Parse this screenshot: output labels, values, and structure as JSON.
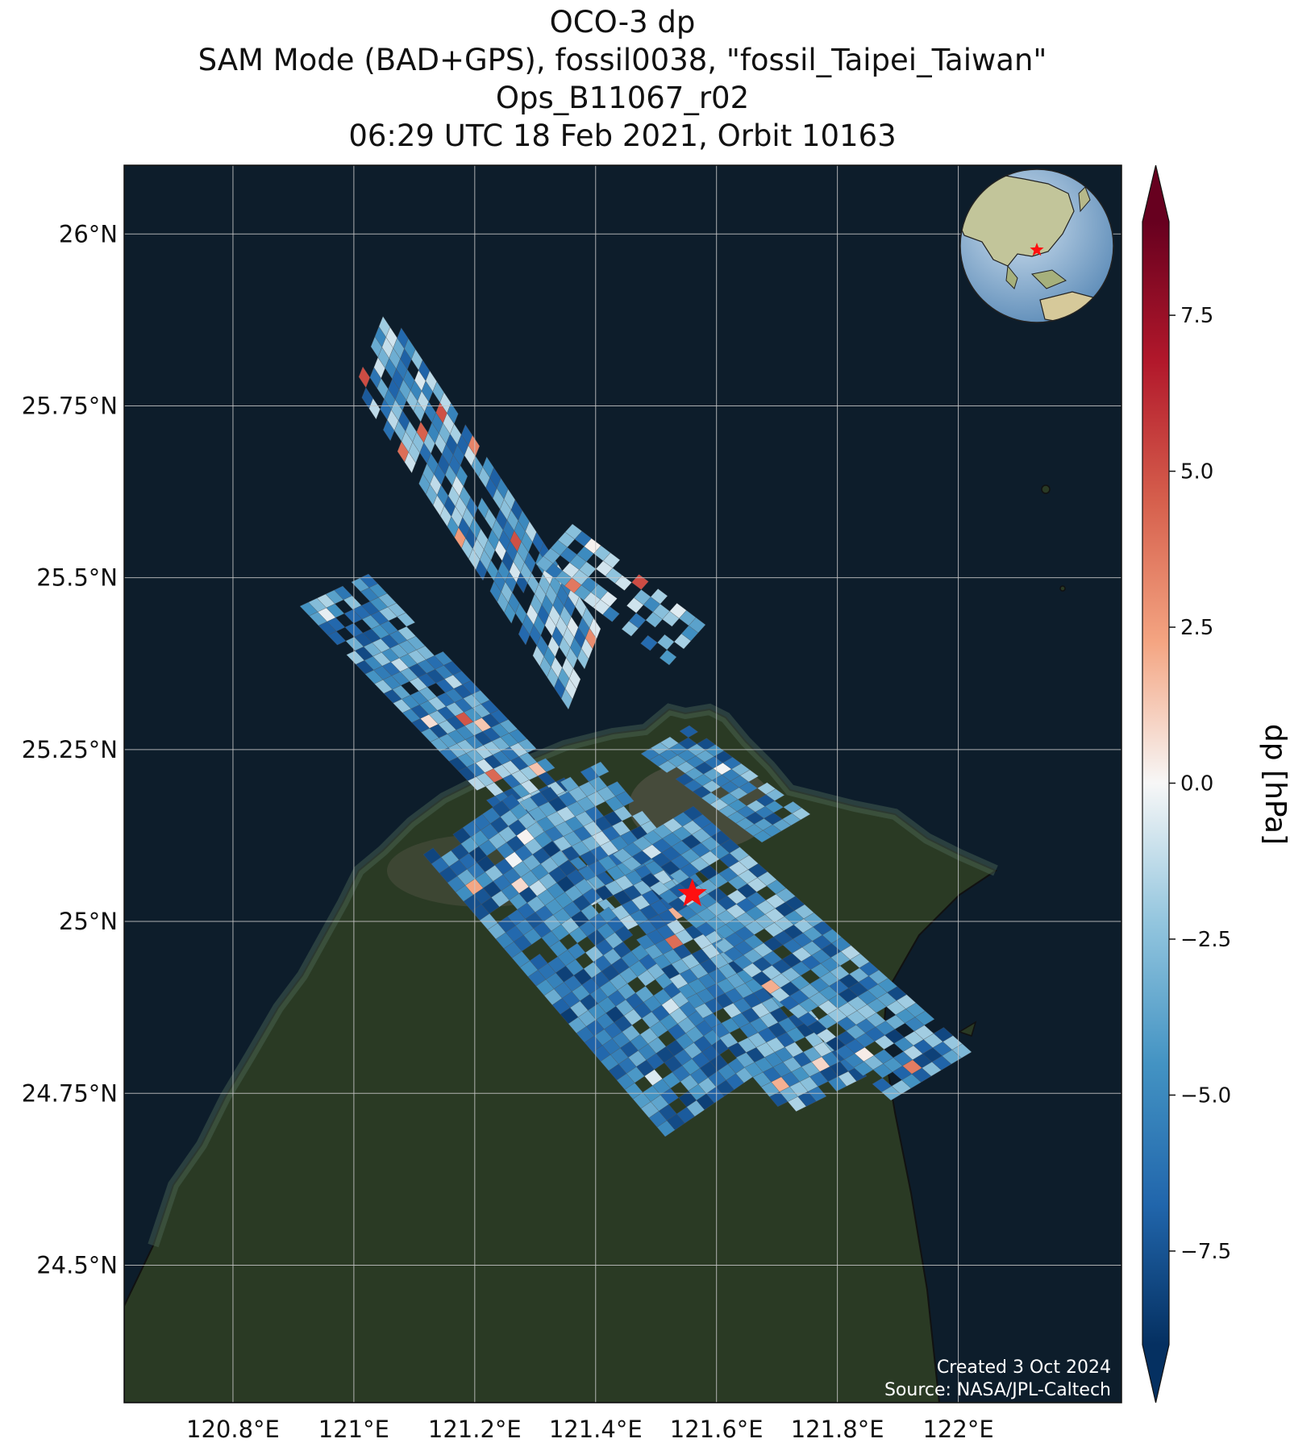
{
  "title_lines": [
    "OCO-3 dp",
    "SAM Mode (BAD+GPS), fossil0038, \"fossil_Taipei_Taiwan\"",
    "Ops_B11067_r02",
    "06:29 UTC 18 Feb 2021, Orbit 10163"
  ],
  "map": {
    "lon_range": [
      120.62,
      122.27
    ],
    "lat_range": [
      24.3,
      26.1
    ],
    "lon_ticks": [
      "120.8°E",
      "121°E",
      "121.2°E",
      "121.4°E",
      "121.6°E",
      "121.8°E",
      "122°E"
    ],
    "lat_ticks": [
      "26°N",
      "25.75°N",
      "25.5°N",
      "25.25°N",
      "25°N",
      "24.75°N",
      "24.5°N"
    ],
    "grid": true,
    "basemap": "satellite imagery",
    "target": {
      "name": "star-marker",
      "lon": 121.56,
      "lat": 25.04,
      "color": "#ff1010"
    },
    "inset": "globe locator (East Asia) with red star at target, top-right",
    "colors": {
      "ocean": "#0d1d2b",
      "land": "#2a3a24",
      "grid": "#c9c9c9",
      "star": "#ff1010"
    }
  },
  "colorbar": {
    "label": "dp [hPa]",
    "range": [
      -9,
      9
    ],
    "ticks": [
      "7.5",
      "5.0",
      "2.5",
      "0.0",
      "−2.5",
      "−5.0",
      "−7.5"
    ],
    "colormap": "RdBu_r",
    "extend": "both"
  },
  "credits": {
    "line1": "Created 3 Oct 2024",
    "line2": "Source: NASA/JPL-Caltech"
  }
}
